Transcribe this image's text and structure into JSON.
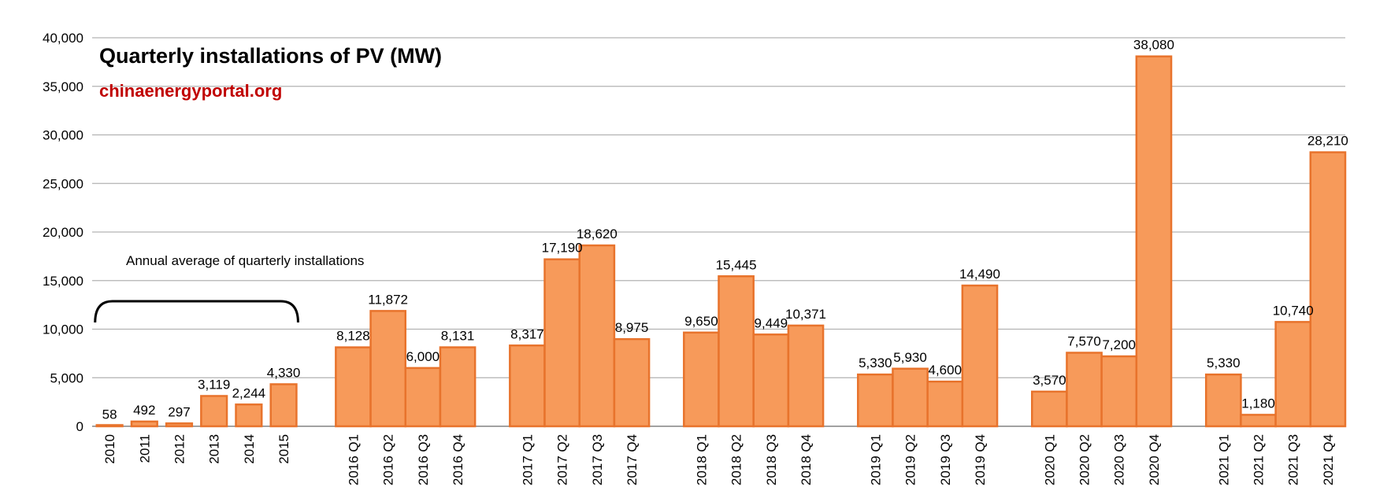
{
  "chart_data": {
    "type": "bar",
    "title": "Quarterly installations of PV (MW)",
    "subtitle": "chinaenergyportal.org",
    "xlabel": "",
    "ylabel": "",
    "ylim": [
      0,
      40000
    ],
    "y_ticks": [
      "0",
      "5,000",
      "10,000",
      "15,000",
      "20,000",
      "25,000",
      "30,000",
      "35,000",
      "40,000"
    ],
    "grid": true,
    "legend": "none",
    "colors": {
      "bar_fill": "#F79A5A",
      "bar_stroke": "#E8732C",
      "subtitle": "#C00000",
      "grid": "#B3B3B3"
    },
    "annotation": {
      "text": "Annual average of quarterly installations",
      "spans": [
        "2010",
        "2015"
      ]
    },
    "groups": [
      {
        "categories": [
          "2010",
          "2011",
          "2012",
          "2013",
          "2014",
          "2015"
        ],
        "values": [
          58,
          492,
          297,
          3119,
          2244,
          4330
        ],
        "labels": [
          "58",
          "492",
          "297",
          "3,119",
          "2,244",
          "4,330"
        ]
      },
      {
        "categories": [
          "2016 Q1",
          "2016 Q2",
          "2016 Q3",
          "2016 Q4"
        ],
        "values": [
          8128,
          11872,
          6000,
          8131
        ],
        "labels": [
          "8,128",
          "11,872",
          "6,000",
          "8,131"
        ]
      },
      {
        "categories": [
          "2017 Q1",
          "2017 Q2",
          "2017 Q3",
          "2017 Q4"
        ],
        "values": [
          8317,
          17190,
          18620,
          8975
        ],
        "labels": [
          "8,317",
          "17,190",
          "18,620",
          "8,975"
        ]
      },
      {
        "categories": [
          "2018 Q1",
          "2018 Q2",
          "2018 Q3",
          "2018 Q4"
        ],
        "values": [
          9650,
          15445,
          9449,
          10371
        ],
        "labels": [
          "9,650",
          "15,445",
          "9,449",
          "10,371"
        ]
      },
      {
        "categories": [
          "2019 Q1",
          "2019 Q2",
          "2019 Q3",
          "2019 Q4"
        ],
        "values": [
          5330,
          5930,
          4600,
          14490
        ],
        "labels": [
          "5,330",
          "5,930",
          "4,600",
          "14,490"
        ]
      },
      {
        "categories": [
          "2020 Q1",
          "2020 Q2",
          "2020 Q3",
          "2020 Q4"
        ],
        "values": [
          3570,
          7570,
          7200,
          38080
        ],
        "labels": [
          "3,570",
          "7,570",
          "7,200",
          "38,080"
        ]
      },
      {
        "categories": [
          "2021 Q1",
          "2021 Q2",
          "2021 Q3",
          "2021 Q4"
        ],
        "values": [
          5330,
          1180,
          10740,
          28210
        ],
        "labels": [
          "5,330",
          "1,180",
          "10,740",
          "28,210"
        ]
      }
    ]
  }
}
